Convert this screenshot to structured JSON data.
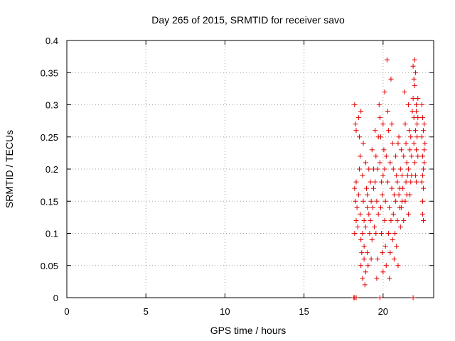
{
  "chart_data": {
    "type": "scatter",
    "title": "Day 265 of 2015, SRMTID for receiver savo",
    "xlabel": "GPS time / hours",
    "ylabel": "SRMTID / TECUs",
    "xlim": [
      0,
      23.2
    ],
    "ylim": [
      0,
      0.4
    ],
    "grid": true,
    "x_ticks": [
      0,
      5,
      10,
      15,
      20
    ],
    "x_tick_labels": [
      "0",
      "5",
      "10",
      "15",
      "20"
    ],
    "y_ticks": [
      0,
      0.05,
      0.1,
      0.15,
      0.2,
      0.25,
      0.3,
      0.35,
      0.4
    ],
    "y_tick_labels": [
      "0",
      "0.05",
      "0.1",
      "0.15",
      "0.2",
      "0.25",
      "0.3",
      "0.35",
      "0.4"
    ],
    "marker": "plus",
    "series": [
      {
        "name": "savo",
        "color": "#e00000",
        "points": [
          [
            18.15,
            0.0
          ],
          [
            18.2,
            0.0
          ],
          [
            18.3,
            0.0
          ],
          [
            19.8,
            0.0
          ],
          [
            21.9,
            0.0
          ],
          [
            18.2,
            0.3
          ],
          [
            18.25,
            0.27
          ],
          [
            18.3,
            0.26
          ],
          [
            18.2,
            0.17
          ],
          [
            18.25,
            0.15
          ],
          [
            18.3,
            0.12
          ],
          [
            18.2,
            0.1
          ],
          [
            18.35,
            0.14
          ],
          [
            18.3,
            0.18
          ],
          [
            18.4,
            0.11
          ],
          [
            18.45,
            0.28
          ],
          [
            18.5,
            0.25
          ],
          [
            18.55,
            0.22
          ],
          [
            18.5,
            0.2
          ],
          [
            18.45,
            0.16
          ],
          [
            18.55,
            0.13
          ],
          [
            18.6,
            0.09
          ],
          [
            18.6,
            0.05
          ],
          [
            18.7,
            0.03
          ],
          [
            18.65,
            0.07
          ],
          [
            18.6,
            0.29
          ],
          [
            18.7,
            0.19
          ],
          [
            18.75,
            0.15
          ],
          [
            18.8,
            0.12
          ],
          [
            18.7,
            0.1
          ],
          [
            18.8,
            0.06
          ],
          [
            18.85,
            0.02
          ],
          [
            18.9,
            0.04
          ],
          [
            18.8,
            0.08
          ],
          [
            18.75,
            0.24
          ],
          [
            18.9,
            0.21
          ],
          [
            18.95,
            0.17
          ],
          [
            19.0,
            0.14
          ],
          [
            18.9,
            0.11
          ],
          [
            19.0,
            0.07
          ],
          [
            19.05,
            0.05
          ],
          [
            19.1,
            0.13
          ],
          [
            19.0,
            0.16
          ],
          [
            19.1,
            0.2
          ],
          [
            19.15,
            0.1
          ],
          [
            19.2,
            0.18
          ],
          [
            19.25,
            0.15
          ],
          [
            19.2,
            0.12
          ],
          [
            19.3,
            0.09
          ],
          [
            19.25,
            0.06
          ],
          [
            19.35,
            0.14
          ],
          [
            19.4,
            0.2
          ],
          [
            19.3,
            0.23
          ],
          [
            19.4,
            0.17
          ],
          [
            19.45,
            0.11
          ],
          [
            19.5,
            0.26
          ],
          [
            19.55,
            0.22
          ],
          [
            19.5,
            0.18
          ],
          [
            19.6,
            0.15
          ],
          [
            19.55,
            0.1
          ],
          [
            19.65,
            0.06
          ],
          [
            19.6,
            0.03
          ],
          [
            19.7,
            0.13
          ],
          [
            19.65,
            0.2
          ],
          [
            19.7,
            0.25
          ],
          [
            19.75,
            0.3
          ],
          [
            19.8,
            0.28
          ],
          [
            19.85,
            0.25
          ],
          [
            19.8,
            0.21
          ],
          [
            19.9,
            0.18
          ],
          [
            19.85,
            0.14
          ],
          [
            19.9,
            0.1
          ],
          [
            19.95,
            0.07
          ],
          [
            20.0,
            0.04
          ],
          [
            19.95,
            0.16
          ],
          [
            20.0,
            0.27
          ],
          [
            20.05,
            0.23
          ],
          [
            20.1,
            0.2
          ],
          [
            20.0,
            0.19
          ],
          [
            20.1,
            0.12
          ],
          [
            20.15,
            0.08
          ],
          [
            20.2,
            0.05
          ],
          [
            20.15,
            0.15
          ],
          [
            20.2,
            0.22
          ],
          [
            20.1,
            0.32
          ],
          [
            20.25,
            0.37
          ],
          [
            20.3,
            0.29
          ],
          [
            20.35,
            0.26
          ],
          [
            20.3,
            0.18
          ],
          [
            20.4,
            0.14
          ],
          [
            20.35,
            0.1
          ],
          [
            20.45,
            0.07
          ],
          [
            20.4,
            0.03
          ],
          [
            20.5,
            0.12
          ],
          [
            20.45,
            0.21
          ],
          [
            20.5,
            0.34
          ],
          [
            20.55,
            0.27
          ],
          [
            20.6,
            0.24
          ],
          [
            20.55,
            0.17
          ],
          [
            20.65,
            0.13
          ],
          [
            20.6,
            0.09
          ],
          [
            20.7,
            0.06
          ],
          [
            20.65,
            0.2
          ],
          [
            20.7,
            0.16
          ],
          [
            20.75,
            0.1
          ],
          [
            20.8,
            0.22
          ],
          [
            20.85,
            0.19
          ],
          [
            20.8,
            0.15
          ],
          [
            20.9,
            0.12
          ],
          [
            20.85,
            0.08
          ],
          [
            20.95,
            0.05
          ],
          [
            20.9,
            0.18
          ],
          [
            21.0,
            0.16
          ],
          [
            21.05,
            0.14
          ],
          [
            20.95,
            0.24
          ],
          [
            21.0,
            0.25
          ],
          [
            21.1,
            0.2
          ],
          [
            21.05,
            0.17
          ],
          [
            21.15,
            0.14
          ],
          [
            21.1,
            0.11
          ],
          [
            21.2,
            0.19
          ],
          [
            21.15,
            0.23
          ],
          [
            21.25,
            0.17
          ],
          [
            21.2,
            0.15
          ],
          [
            21.3,
            0.12
          ],
          [
            21.35,
            0.32
          ],
          [
            21.4,
            0.27
          ],
          [
            21.3,
            0.22
          ],
          [
            21.45,
            0.18
          ],
          [
            21.4,
            0.15
          ],
          [
            21.5,
            0.21
          ],
          [
            21.45,
            0.24
          ],
          [
            21.55,
            0.19
          ],
          [
            21.5,
            0.16
          ],
          [
            21.6,
            0.13
          ],
          [
            21.6,
            0.3
          ],
          [
            21.65,
            0.26
          ],
          [
            21.7,
            0.23
          ],
          [
            21.6,
            0.2
          ],
          [
            21.75,
            0.18
          ],
          [
            21.7,
            0.16
          ],
          [
            21.8,
            0.22
          ],
          [
            21.75,
            0.25
          ],
          [
            21.85,
            0.29
          ],
          [
            21.8,
            0.19
          ],
          [
            21.9,
            0.31
          ],
          [
            21.95,
            0.34
          ],
          [
            22.0,
            0.37
          ],
          [
            21.9,
            0.36
          ],
          [
            22.05,
            0.35
          ],
          [
            22.0,
            0.33
          ],
          [
            22.1,
            0.3
          ],
          [
            21.95,
            0.28
          ],
          [
            22.05,
            0.26
          ],
          [
            22.1,
            0.23
          ],
          [
            22.0,
            0.21
          ],
          [
            22.15,
            0.27
          ],
          [
            22.1,
            0.29
          ],
          [
            22.2,
            0.28
          ],
          [
            22.15,
            0.25
          ],
          [
            22.05,
            0.19
          ],
          [
            21.95,
            0.24
          ],
          [
            22.2,
            0.22
          ],
          [
            22.1,
            0.18
          ],
          [
            22.2,
            0.31
          ],
          [
            22.45,
            0.25
          ],
          [
            22.5,
            0.22
          ],
          [
            22.55,
            0.2
          ],
          [
            22.45,
            0.18
          ],
          [
            22.5,
            0.15
          ],
          [
            22.55,
            0.12
          ],
          [
            22.6,
            0.27
          ],
          [
            22.5,
            0.28
          ],
          [
            22.65,
            0.24
          ],
          [
            22.6,
            0.21
          ],
          [
            22.45,
            0.3
          ],
          [
            22.55,
            0.26
          ],
          [
            22.6,
            0.23
          ],
          [
            22.5,
            0.19
          ],
          [
            22.55,
            0.17
          ],
          [
            22.5,
            0.13
          ]
        ]
      }
    ]
  }
}
